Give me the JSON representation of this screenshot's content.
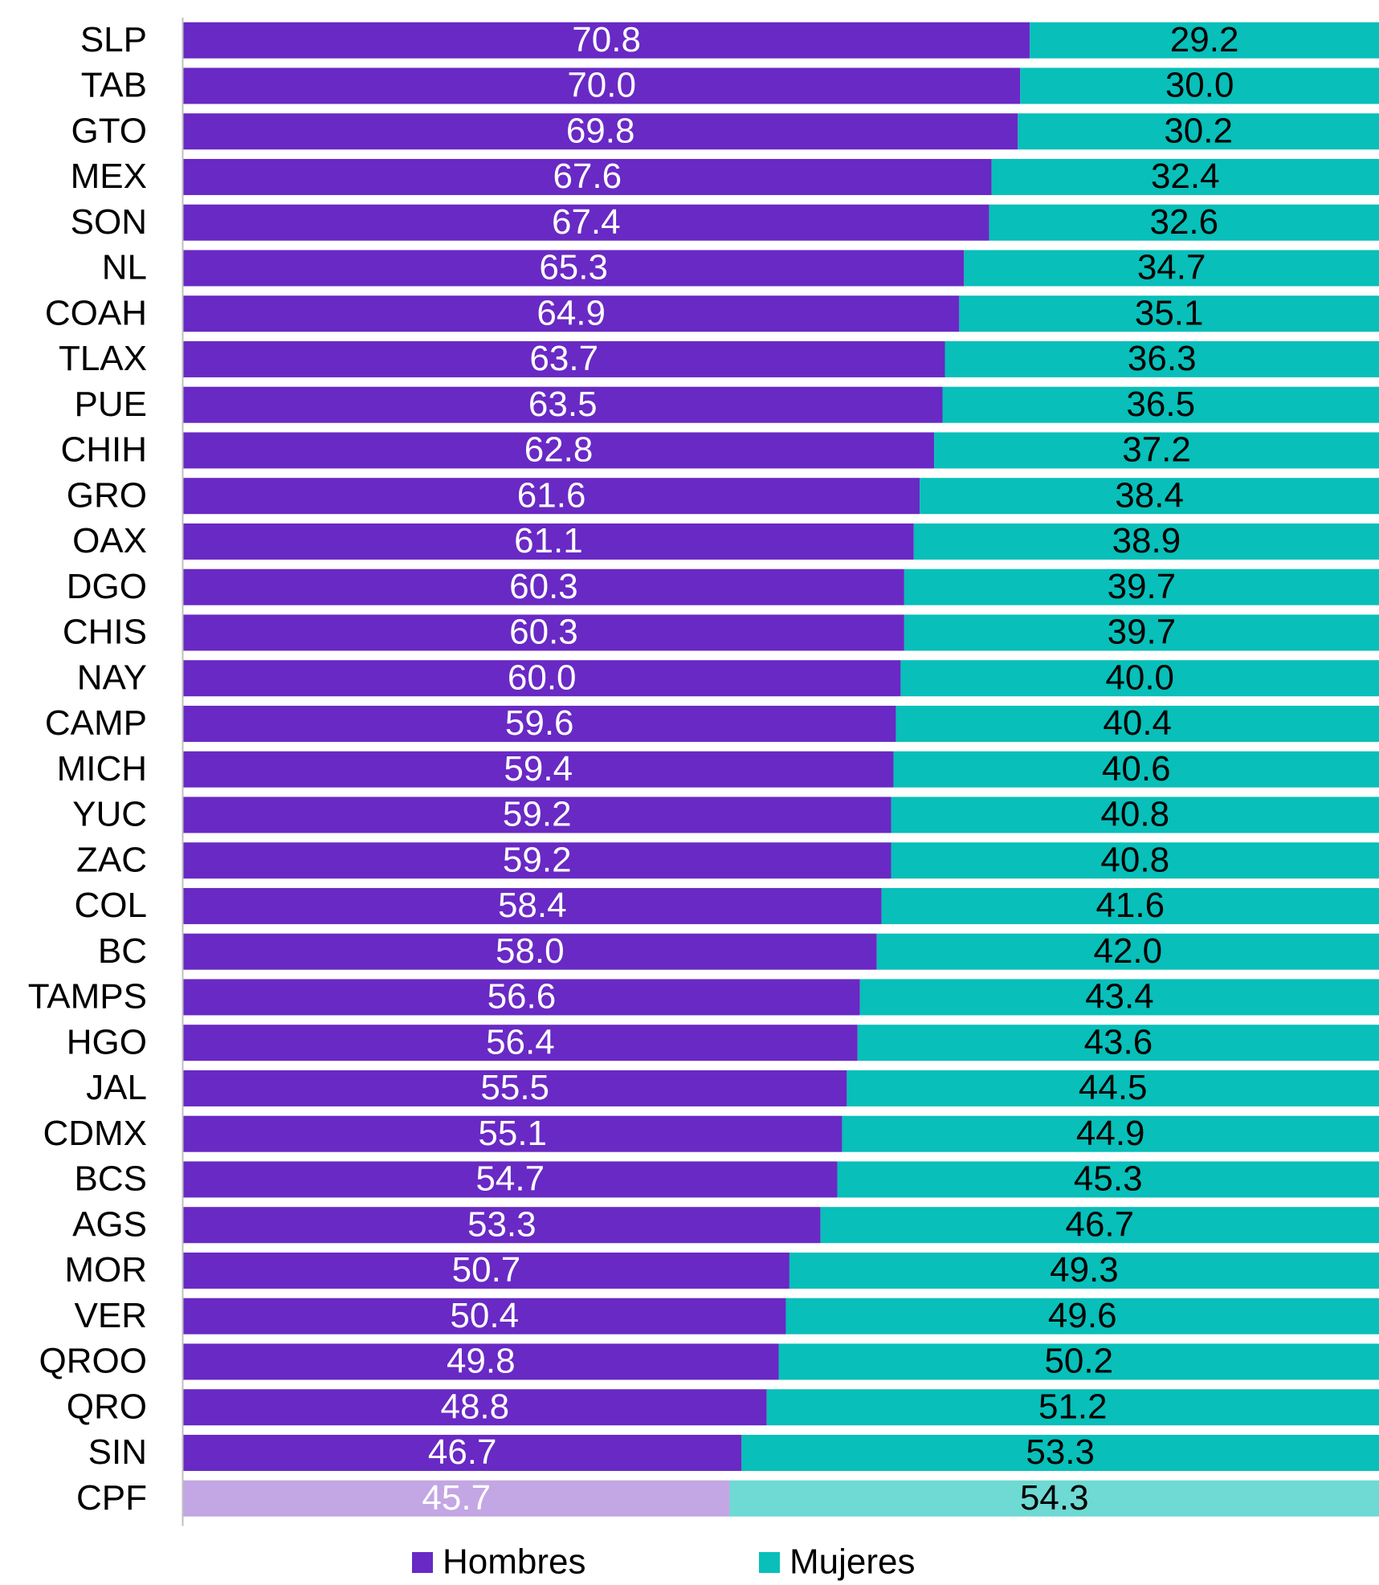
{
  "chart_data": {
    "type": "stacked_barh_100",
    "categories": [
      "SLP",
      "TAB",
      "GTO",
      "MEX",
      "SON",
      "NL",
      "COAH",
      "TLAX",
      "PUE",
      "CHIH",
      "GRO",
      "OAX",
      "DGO",
      "CHIS",
      "NAY",
      "CAMP",
      "MICH",
      "YUC",
      "ZAC",
      "COL",
      "BC",
      "TAMPS",
      "HGO",
      "JAL",
      "CDMX",
      "BCS",
      "AGS",
      "MOR",
      "VER",
      "QROO",
      "QRO",
      "SIN",
      "CPF"
    ],
    "xlim": [
      0,
      100
    ],
    "legend": "bottom",
    "series": [
      {
        "name": "Hombres",
        "color": "#6929c4",
        "label_color": "#ffffff",
        "values": [
          70.8,
          70.0,
          69.8,
          67.6,
          67.4,
          65.3,
          64.9,
          63.7,
          63.5,
          62.8,
          61.6,
          61.1,
          60.3,
          60.3,
          60.0,
          59.6,
          59.4,
          59.2,
          59.2,
          58.4,
          58.0,
          56.6,
          56.4,
          55.5,
          55.1,
          54.7,
          53.3,
          50.7,
          50.4,
          49.8,
          48.8,
          46.7,
          45.7
        ],
        "value_labels": [
          "70.8",
          "70.0",
          "69.8",
          "67.6",
          "67.4",
          "65.3",
          "64.9",
          "63.7",
          "63.5",
          "62.8",
          "61.6",
          "61.1",
          "60.3",
          "60.3",
          "60.0",
          "59.6",
          "59.4",
          "59.2",
          "59.2",
          "58.4",
          "58.0",
          "56.6",
          "56.4",
          "55.5",
          "55.1",
          "54.7",
          "53.3",
          "50.7",
          "50.4",
          "49.8",
          "48.8",
          "46.7",
          "45.7"
        ],
        "colors": [
          "#6929c4",
          "#6929c4",
          "#6929c4",
          "#6929c4",
          "#6929c4",
          "#6929c4",
          "#6929c4",
          "#6929c4",
          "#6929c4",
          "#6929c4",
          "#6929c4",
          "#6929c4",
          "#6929c4",
          "#6929c4",
          "#6929c4",
          "#6929c4",
          "#6929c4",
          "#6929c4",
          "#6929c4",
          "#6929c4",
          "#6929c4",
          "#6929c4",
          "#6929c4",
          "#6929c4",
          "#6929c4",
          "#6929c4",
          "#6929c4",
          "#6929c4",
          "#6929c4",
          "#6929c4",
          "#6929c4",
          "#6929c4",
          "#c3a6e4"
        ]
      },
      {
        "name": "Mujeres",
        "color": "#08bfb9",
        "label_color": "#000000",
        "values": [
          29.2,
          30.0,
          30.2,
          32.4,
          32.6,
          34.7,
          35.1,
          36.3,
          36.5,
          37.2,
          38.4,
          38.9,
          39.7,
          39.7,
          40.0,
          40.4,
          40.6,
          40.8,
          40.8,
          41.6,
          42.0,
          43.4,
          43.6,
          44.5,
          44.9,
          45.3,
          46.7,
          49.3,
          49.6,
          50.2,
          51.2,
          53.3,
          54.3
        ],
        "value_labels": [
          "29.2",
          "30.0",
          "30.2",
          "32.4",
          "32.6",
          "34.7",
          "35.1",
          "36.3",
          "36.5",
          "37.2",
          "38.4",
          "38.9",
          "39.7",
          "39.7",
          "40.0",
          "40.4",
          "40.6",
          "40.8",
          "40.8",
          "41.6",
          "42.0",
          "43.4",
          "43.6",
          "44.5",
          "44.9",
          "45.3",
          "46.7",
          "49.3",
          "49.6",
          "50.2",
          "51.2",
          "53.3",
          "54.3"
        ],
        "colors": [
          "#08bfb9",
          "#08bfb9",
          "#08bfb9",
          "#08bfb9",
          "#08bfb9",
          "#08bfb9",
          "#08bfb9",
          "#08bfb9",
          "#08bfb9",
          "#08bfb9",
          "#08bfb9",
          "#08bfb9",
          "#08bfb9",
          "#08bfb9",
          "#08bfb9",
          "#08bfb9",
          "#08bfb9",
          "#08bfb9",
          "#08bfb9",
          "#08bfb9",
          "#08bfb9",
          "#08bfb9",
          "#08bfb9",
          "#08bfb9",
          "#08bfb9",
          "#08bfb9",
          "#08bfb9",
          "#08bfb9",
          "#08bfb9",
          "#08bfb9",
          "#08bfb9",
          "#08bfb9",
          "#6fd9d4"
        ]
      }
    ]
  }
}
